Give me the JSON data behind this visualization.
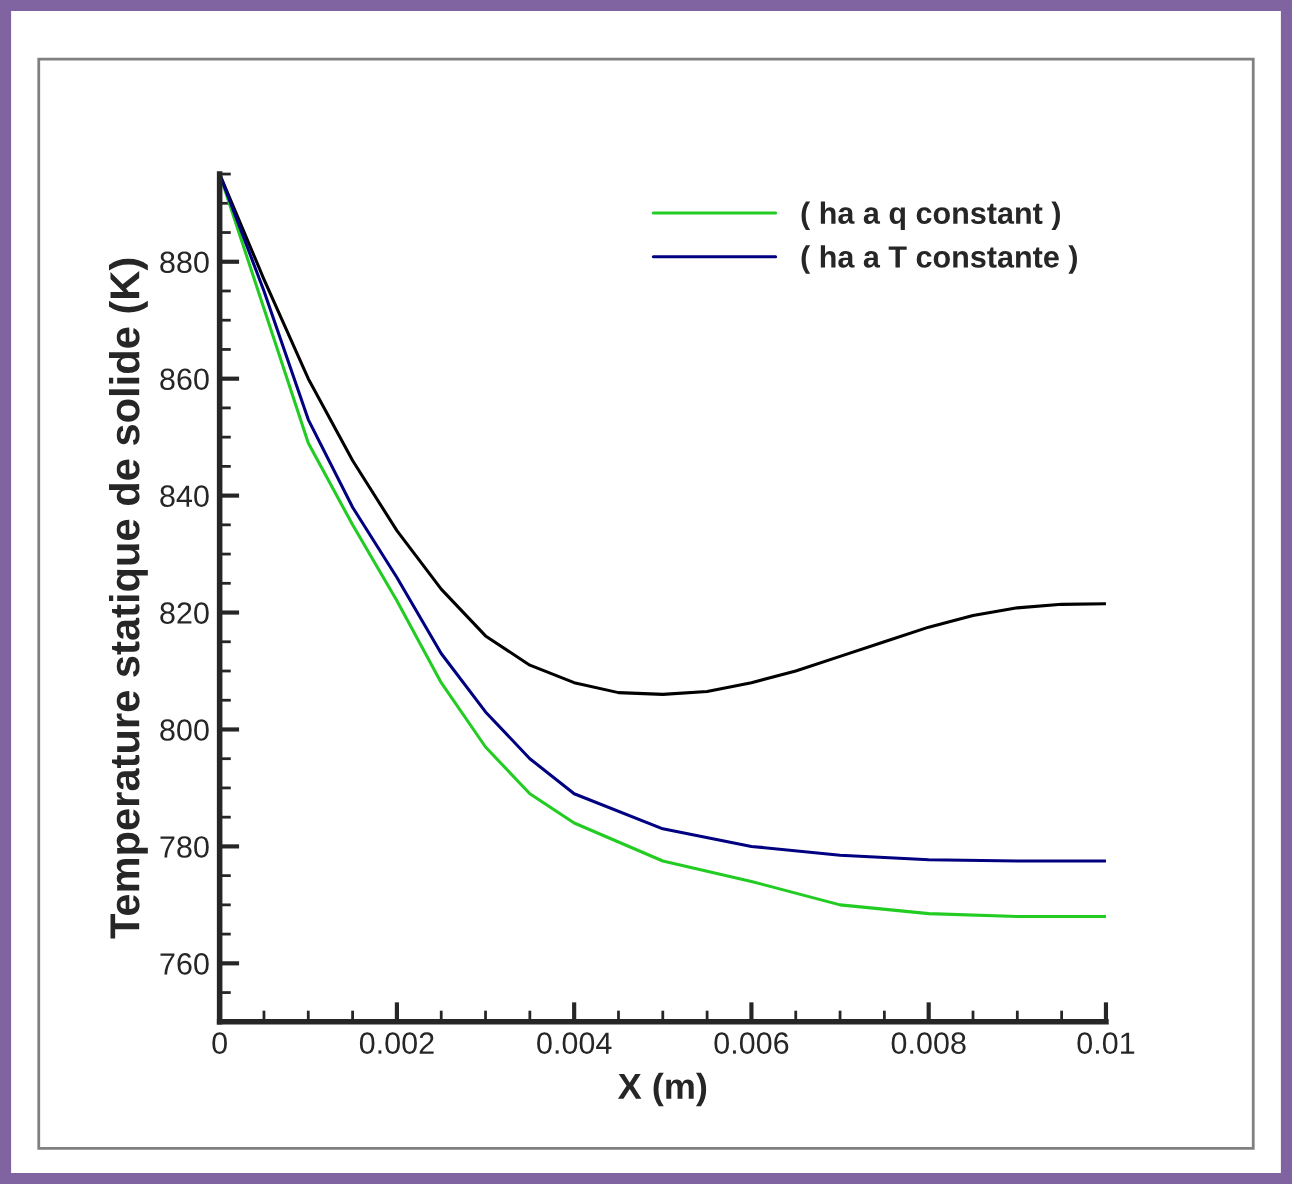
{
  "chart_data": {
    "type": "line",
    "xlabel": "X (m)",
    "ylabel": "Temperature statique de solide (K)",
    "xlim": [
      0,
      0.01
    ],
    "ylim": [
      750,
      895
    ],
    "xticks": [
      0,
      0.002,
      0.004,
      0.006,
      0.008,
      0.01
    ],
    "yticks": [
      760,
      780,
      800,
      820,
      840,
      860,
      880
    ],
    "grid": false,
    "legend": "top right",
    "marker": "none",
    "line_style": "solid",
    "series": [
      {
        "color": "#000000",
        "x": [
          0,
          0.0005,
          0.001,
          0.0015,
          0.002,
          0.0025,
          0.003,
          0.0035,
          0.004,
          0.0045,
          0.005,
          0.0055,
          0.006,
          0.0065,
          0.007,
          0.0075,
          0.008,
          0.0085,
          0.009,
          0.0095,
          0.01
        ],
        "values": [
          895,
          877,
          860,
          846,
          834,
          824,
          816,
          811,
          808,
          806.3,
          806,
          806.5,
          808,
          810,
          812.5,
          815,
          817.5,
          819.5,
          820.8,
          821.4,
          821.5
        ]
      },
      {
        "name": "( ha a q constant )",
        "color": "#22cc22",
        "x": [
          0,
          0.0005,
          0.001,
          0.0015,
          0.002,
          0.0025,
          0.003,
          0.0035,
          0.004,
          0.005,
          0.006,
          0.007,
          0.008,
          0.009,
          0.01
        ],
        "values": [
          895,
          872,
          849,
          835,
          822,
          808,
          797,
          789,
          784,
          777.5,
          774,
          770,
          768.5,
          768,
          768
        ]
      },
      {
        "name": "( ha a T constante )",
        "color": "#000080",
        "x": [
          0,
          0.0005,
          0.001,
          0.0015,
          0.002,
          0.0025,
          0.003,
          0.0035,
          0.004,
          0.005,
          0.006,
          0.007,
          0.008,
          0.009,
          0.01
        ],
        "values": [
          895,
          875,
          853,
          838,
          826,
          813,
          803,
          795,
          789,
          783,
          780,
          778.5,
          777.7,
          777.5,
          777.5
        ]
      }
    ]
  }
}
